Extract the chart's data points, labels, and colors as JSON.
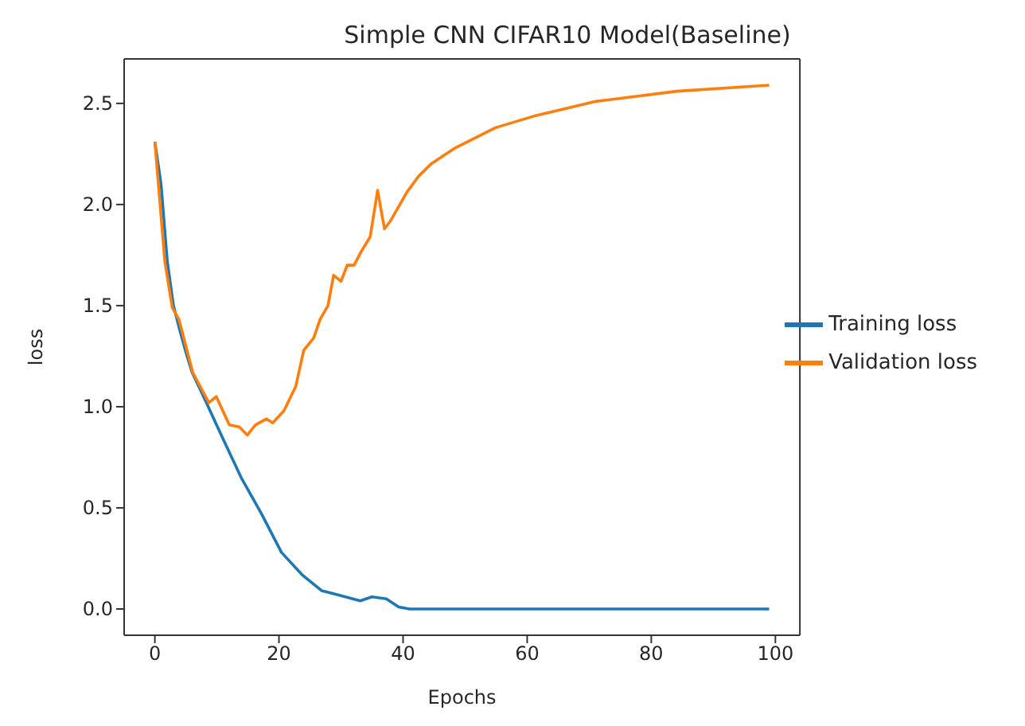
{
  "chart_data": {
    "type": "line",
    "title": "Simple CNN CIFAR10 Model(Baseline)",
    "xlabel": "Epochs",
    "ylabel": "loss",
    "xlim": [
      -4.95,
      103.95
    ],
    "xticks": [
      0,
      20,
      40,
      60,
      80,
      100
    ],
    "ylim": [
      -0.13,
      2.72
    ],
    "yticks": [
      {
        "value": 0,
        "label": "0.0"
      },
      0.5,
      {
        "value": 1,
        "label": "1.0"
      },
      1.5,
      {
        "value": 2,
        "label": "2.0"
      },
      2.5
    ],
    "grid": false,
    "legend": "right",
    "marker": "none",
    "line_style": "solid",
    "series": [
      {
        "name": "Training loss",
        "color": "#1f77b4",
        "x": [
          0,
          1,
          2,
          3,
          4,
          5,
          6,
          7.4,
          10.7,
          13.9,
          17.2,
          20.4,
          23.7,
          26.9,
          29.5,
          33.1,
          35,
          37.3,
          39.3,
          41,
          60,
          80,
          99
        ],
        "values": [
          2.31,
          2.1,
          1.72,
          1.5,
          1.38,
          1.27,
          1.17,
          1.08,
          0.86,
          0.65,
          0.47,
          0.28,
          0.17,
          0.09,
          0.07,
          0.04,
          0.06,
          0.05,
          0.01,
          0,
          0,
          0,
          0
        ]
      },
      {
        "name": "Validation loss",
        "color": "#ff7f0e",
        "x": [
          0,
          1.6,
          2.8,
          3.9,
          6.1,
          8.7,
          9.9,
          12,
          13.6,
          14.9,
          16.2,
          18,
          19,
          20.8,
          22.7,
          24,
          25.6,
          26.6,
          27.9,
          28.8,
          30,
          31,
          32.1,
          33.3,
          34.7,
          35.9,
          37,
          38,
          40.6,
          42.5,
          44.5,
          48.4,
          54.9,
          61.4,
          71.1,
          84.1,
          99
        ],
        "values": [
          2.31,
          1.72,
          1.49,
          1.43,
          1.17,
          1.02,
          1.05,
          0.91,
          0.9,
          0.86,
          0.91,
          0.94,
          0.92,
          0.98,
          1.1,
          1.28,
          1.34,
          1.43,
          1.5,
          1.65,
          1.62,
          1.7,
          1.7,
          1.77,
          1.84,
          2.07,
          1.88,
          1.92,
          2.06,
          2.14,
          2.2,
          2.28,
          2.38,
          2.44,
          2.51,
          2.56,
          2.59
        ]
      }
    ]
  }
}
